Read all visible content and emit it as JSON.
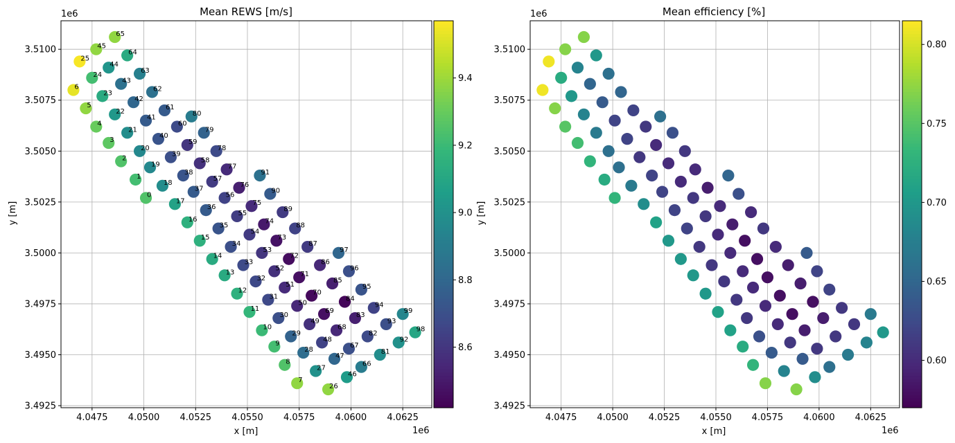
{
  "chart_data": [
    {
      "type": "scatter",
      "title": "Mean REWS [m/s]",
      "xlabel": "x [m]",
      "ylabel": "y [m]",
      "x_offset_label": "1e6",
      "y_offset_label": "1e6",
      "xlim": [
        4046000,
        4063900
      ],
      "ylim": [
        3492400,
        3511400
      ],
      "xticks": [
        "4.0475",
        "4.0500",
        "4.0525",
        "4.0550",
        "4.0575",
        "4.0600",
        "4.0625"
      ],
      "yticks": [
        "3.4925",
        "3.4950",
        "3.4975",
        "3.5000",
        "3.5025",
        "3.5050",
        "3.5075",
        "3.5100"
      ],
      "grid": true,
      "point_labels": true,
      "colorbar": {
        "colormap": "viridis",
        "min": 8.42,
        "max": 9.57,
        "ticks": [
          "8.6",
          "8.8",
          "9.0",
          "9.2",
          "9.4"
        ]
      }
    },
    {
      "type": "scatter",
      "title": "Mean efficiency [%]",
      "xlabel": "x [m]",
      "ylabel": "y [m]",
      "x_offset_label": "1e6",
      "y_offset_label": "1e6",
      "xlim": [
        4046000,
        4063900
      ],
      "ylim": [
        3492400,
        3511400
      ],
      "xticks": [
        "4.0475",
        "4.0500",
        "4.0525",
        "4.0550",
        "4.0575",
        "4.0600",
        "4.0625"
      ],
      "yticks": [
        "3.4925",
        "3.4950",
        "3.4975",
        "3.5000",
        "3.5025",
        "3.5050",
        "3.5075",
        "3.5100"
      ],
      "grid": true,
      "point_labels": false,
      "colorbar": {
        "colormap": "viridis",
        "min": 0.57,
        "max": 0.815,
        "ticks": [
          "0.60",
          "0.65",
          "0.70",
          "0.75",
          "0.80"
        ]
      }
    }
  ],
  "turbines": [
    {
      "id": 0,
      "x": 4050100,
      "y": 3502700,
      "rews": 9.25,
      "eff": 0.73
    },
    {
      "id": 1,
      "x": 4049600,
      "y": 3503600,
      "rews": 9.22,
      "eff": 0.72
    },
    {
      "id": 2,
      "x": 4048900,
      "y": 3504500,
      "rews": 9.25,
      "eff": 0.73
    },
    {
      "id": 3,
      "x": 4048300,
      "y": 3505400,
      "rews": 9.28,
      "eff": 0.74
    },
    {
      "id": 4,
      "x": 4047700,
      "y": 3506200,
      "rews": 9.3,
      "eff": 0.75
    },
    {
      "id": 5,
      "x": 4047200,
      "y": 3507100,
      "rews": 9.38,
      "eff": 0.77
    },
    {
      "id": 6,
      "x": 4046600,
      "y": 3508000,
      "rews": 9.53,
      "eff": 0.81
    },
    {
      "id": 7,
      "x": 4057400,
      "y": 3493600,
      "rews": 9.38,
      "eff": 0.77
    },
    {
      "id": 8,
      "x": 4056800,
      "y": 3494500,
      "rews": 9.25,
      "eff": 0.73
    },
    {
      "id": 9,
      "x": 4056300,
      "y": 3495400,
      "rews": 9.22,
      "eff": 0.72
    },
    {
      "id": 10,
      "x": 4055700,
      "y": 3496200,
      "rews": 9.2,
      "eff": 0.71
    },
    {
      "id": 11,
      "x": 4055100,
      "y": 3497100,
      "rews": 9.18,
      "eff": 0.71
    },
    {
      "id": 12,
      "x": 4054500,
      "y": 3498000,
      "rews": 9.15,
      "eff": 0.7
    },
    {
      "id": 13,
      "x": 4053900,
      "y": 3498900,
      "rews": 9.12,
      "eff": 0.7
    },
    {
      "id": 14,
      "x": 4053300,
      "y": 3499700,
      "rews": 9.12,
      "eff": 0.7
    },
    {
      "id": 15,
      "x": 4052700,
      "y": 3500600,
      "rews": 9.15,
      "eff": 0.7
    },
    {
      "id": 16,
      "x": 4052100,
      "y": 3501500,
      "rews": 9.15,
      "eff": 0.71
    },
    {
      "id": 17,
      "x": 4051500,
      "y": 3502400,
      "rews": 9.08,
      "eff": 0.69
    },
    {
      "id": 18,
      "x": 4050900,
      "y": 3503300,
      "rews": 8.98,
      "eff": 0.67
    },
    {
      "id": 19,
      "x": 4050300,
      "y": 3504200,
      "rews": 8.96,
      "eff": 0.66
    },
    {
      "id": 20,
      "x": 4049800,
      "y": 3505000,
      "rews": 8.96,
      "eff": 0.66
    },
    {
      "id": 21,
      "x": 4049200,
      "y": 3505900,
      "rews": 8.98,
      "eff": 0.67
    },
    {
      "id": 22,
      "x": 4048600,
      "y": 3506800,
      "rews": 9.03,
      "eff": 0.68
    },
    {
      "id": 23,
      "x": 4048000,
      "y": 3507700,
      "rews": 9.12,
      "eff": 0.7
    },
    {
      "id": 24,
      "x": 4047500,
      "y": 3508600,
      "rews": 9.22,
      "eff": 0.72
    },
    {
      "id": 25,
      "x": 4046900,
      "y": 3509400,
      "rews": 9.56,
      "eff": 0.81
    },
    {
      "id": 26,
      "x": 4058900,
      "y": 3493300,
      "rews": 9.38,
      "eff": 0.77
    },
    {
      "id": 27,
      "x": 4058300,
      "y": 3494200,
      "rews": 9.0,
      "eff": 0.68
    },
    {
      "id": 28,
      "x": 4057700,
      "y": 3495100,
      "rews": 8.83,
      "eff": 0.64
    },
    {
      "id": 29,
      "x": 4057100,
      "y": 3495900,
      "rews": 8.78,
      "eff": 0.63
    },
    {
      "id": 30,
      "x": 4056500,
      "y": 3496800,
      "rews": 8.7,
      "eff": 0.61
    },
    {
      "id": 31,
      "x": 4056000,
      "y": 3497700,
      "rews": 8.67,
      "eff": 0.61
    },
    {
      "id": 32,
      "x": 4055400,
      "y": 3498600,
      "rews": 8.67,
      "eff": 0.61
    },
    {
      "id": 33,
      "x": 4054800,
      "y": 3499400,
      "rews": 8.68,
      "eff": 0.61
    },
    {
      "id": 34,
      "x": 4054200,
      "y": 3500300,
      "rews": 8.7,
      "eff": 0.61
    },
    {
      "id": 35,
      "x": 4053600,
      "y": 3501200,
      "rews": 8.72,
      "eff": 0.62
    },
    {
      "id": 36,
      "x": 4053000,
      "y": 3502100,
      "rews": 8.75,
      "eff": 0.62
    },
    {
      "id": 37,
      "x": 4052400,
      "y": 3503000,
      "rews": 8.75,
      "eff": 0.62
    },
    {
      "id": 38,
      "x": 4051900,
      "y": 3503800,
      "rews": 8.72,
      "eff": 0.62
    },
    {
      "id": 39,
      "x": 4051300,
      "y": 3504700,
      "rews": 8.7,
      "eff": 0.61
    },
    {
      "id": 40,
      "x": 4050700,
      "y": 3505600,
      "rews": 8.72,
      "eff": 0.62
    },
    {
      "id": 41,
      "x": 4050100,
      "y": 3506500,
      "rews": 8.75,
      "eff": 0.62
    },
    {
      "id": 42,
      "x": 4049500,
      "y": 3507400,
      "rews": 8.8,
      "eff": 0.64
    },
    {
      "id": 43,
      "x": 4048900,
      "y": 3508300,
      "rews": 8.85,
      "eff": 0.65
    },
    {
      "id": 44,
      "x": 4048300,
      "y": 3509100,
      "rews": 9.02,
      "eff": 0.68
    },
    {
      "id": 45,
      "x": 4047700,
      "y": 3510000,
      "rews": 9.38,
      "eff": 0.77
    },
    {
      "id": 46,
      "x": 4059800,
      "y": 3493900,
      "rews": 9.05,
      "eff": 0.69
    },
    {
      "id": 47,
      "x": 4059200,
      "y": 3494800,
      "rews": 8.8,
      "eff": 0.64
    },
    {
      "id": 48,
      "x": 4058600,
      "y": 3495600,
      "rews": 8.65,
      "eff": 0.61
    },
    {
      "id": 49,
      "x": 4058000,
      "y": 3496500,
      "rews": 8.58,
      "eff": 0.6
    },
    {
      "id": 50,
      "x": 4057400,
      "y": 3497400,
      "rews": 8.55,
      "eff": 0.6
    },
    {
      "id": 51,
      "x": 4056800,
      "y": 3498300,
      "rews": 8.56,
      "eff": 0.6
    },
    {
      "id": 52,
      "x": 4056300,
      "y": 3499100,
      "rews": 8.58,
      "eff": 0.6
    },
    {
      "id": 53,
      "x": 4055700,
      "y": 3500000,
      "rews": 8.6,
      "eff": 0.6
    },
    {
      "id": 54,
      "x": 4055100,
      "y": 3500900,
      "rews": 8.62,
      "eff": 0.6
    },
    {
      "id": 55,
      "x": 4054500,
      "y": 3501800,
      "rews": 8.63,
      "eff": 0.61
    },
    {
      "id": 56,
      "x": 4053900,
      "y": 3502700,
      "rews": 8.65,
      "eff": 0.61
    },
    {
      "id": 57,
      "x": 4053300,
      "y": 3503500,
      "rews": 8.62,
      "eff": 0.6
    },
    {
      "id": 58,
      "x": 4052700,
      "y": 3504400,
      "rews": 8.58,
      "eff": 0.6
    },
    {
      "id": 59,
      "x": 4052100,
      "y": 3505300,
      "rews": 8.6,
      "eff": 0.6
    },
    {
      "id": 60,
      "x": 4051600,
      "y": 3506200,
      "rews": 8.68,
      "eff": 0.61
    },
    {
      "id": 61,
      "x": 4051000,
      "y": 3507000,
      "rews": 8.75,
      "eff": 0.62
    },
    {
      "id": 62,
      "x": 4050400,
      "y": 3507900,
      "rews": 8.85,
      "eff": 0.65
    },
    {
      "id": 63,
      "x": 4049800,
      "y": 3508800,
      "rews": 8.92,
      "eff": 0.66
    },
    {
      "id": 64,
      "x": 4049200,
      "y": 3509700,
      "rews": 9.12,
      "eff": 0.7
    },
    {
      "id": 65,
      "x": 4048600,
      "y": 3510600,
      "rews": 9.38,
      "eff": 0.77
    },
    {
      "id": 66,
      "x": 4060500,
      "y": 3494400,
      "rews": 8.9,
      "eff": 0.66
    },
    {
      "id": 67,
      "x": 4059900,
      "y": 3495300,
      "rews": 8.7,
      "eff": 0.61
    },
    {
      "id": 68,
      "x": 4059300,
      "y": 3496200,
      "rews": 8.55,
      "eff": 0.59
    },
    {
      "id": 69,
      "x": 4058700,
      "y": 3497000,
      "rews": 8.47,
      "eff": 0.58
    },
    {
      "id": 70,
      "x": 4058100,
      "y": 3497900,
      "rews": 8.45,
      "eff": 0.58
    },
    {
      "id": 71,
      "x": 4057500,
      "y": 3498800,
      "rews": 8.47,
      "eff": 0.58
    },
    {
      "id": 72,
      "x": 4057000,
      "y": 3499700,
      "rews": 8.46,
      "eff": 0.58
    },
    {
      "id": 73,
      "x": 4056400,
      "y": 3500600,
      "rews": 8.48,
      "eff": 0.58
    },
    {
      "id": 74,
      "x": 4055800,
      "y": 3501400,
      "rews": 8.5,
      "eff": 0.59
    },
    {
      "id": 75,
      "x": 4055200,
      "y": 3502300,
      "rews": 8.56,
      "eff": 0.6
    },
    {
      "id": 76,
      "x": 4054600,
      "y": 3503200,
      "rews": 8.52,
      "eff": 0.59
    },
    {
      "id": 77,
      "x": 4054000,
      "y": 3504100,
      "rews": 8.56,
      "eff": 0.6
    },
    {
      "id": 78,
      "x": 4053500,
      "y": 3505000,
      "rews": 8.68,
      "eff": 0.61
    },
    {
      "id": 79,
      "x": 4052900,
      "y": 3505900,
      "rews": 8.78,
      "eff": 0.63
    },
    {
      "id": 80,
      "x": 4052300,
      "y": 3506700,
      "rews": 8.9,
      "eff": 0.66
    },
    {
      "id": 81,
      "x": 4061400,
      "y": 3495000,
      "rews": 8.98,
      "eff": 0.67
    },
    {
      "id": 82,
      "x": 4060800,
      "y": 3495900,
      "rews": 8.68,
      "eff": 0.61
    },
    {
      "id": 83,
      "x": 4060200,
      "y": 3496800,
      "rews": 8.52,
      "eff": 0.59
    },
    {
      "id": 84,
      "x": 4059700,
      "y": 3497600,
      "rews": 8.44,
      "eff": 0.58
    },
    {
      "id": 85,
      "x": 4059100,
      "y": 3498500,
      "rews": 8.52,
      "eff": 0.59
    },
    {
      "id": 86,
      "x": 4058500,
      "y": 3499400,
      "rews": 8.55,
      "eff": 0.59
    },
    {
      "id": 87,
      "x": 4057900,
      "y": 3500300,
      "rews": 8.62,
      "eff": 0.6
    },
    {
      "id": 88,
      "x": 4057300,
      "y": 3501200,
      "rews": 8.65,
      "eff": 0.61
    },
    {
      "id": 89,
      "x": 4056700,
      "y": 3502000,
      "rews": 8.62,
      "eff": 0.6
    },
    {
      "id": 90,
      "x": 4056100,
      "y": 3502900,
      "rews": 8.75,
      "eff": 0.63
    },
    {
      "id": 91,
      "x": 4055600,
      "y": 3503800,
      "rews": 8.85,
      "eff": 0.65
    },
    {
      "id": 92,
      "x": 4062300,
      "y": 3495600,
      "rews": 9.0,
      "eff": 0.68
    },
    {
      "id": 93,
      "x": 4061700,
      "y": 3496500,
      "rews": 8.7,
      "eff": 0.61
    },
    {
      "id": 94,
      "x": 4061100,
      "y": 3497300,
      "rews": 8.65,
      "eff": 0.61
    },
    {
      "id": 95,
      "x": 4060500,
      "y": 3498200,
      "rews": 8.72,
      "eff": 0.62
    },
    {
      "id": 96,
      "x": 4059900,
      "y": 3499100,
      "rews": 8.7,
      "eff": 0.62
    },
    {
      "id": 97,
      "x": 4059400,
      "y": 3500000,
      "rews": 8.8,
      "eff": 0.64
    },
    {
      "id": 98,
      "x": 4063100,
      "y": 3496100,
      "rews": 9.1,
      "eff": 0.7
    },
    {
      "id": 99,
      "x": 4062500,
      "y": 3497000,
      "rews": 8.95,
      "eff": 0.67
    }
  ]
}
